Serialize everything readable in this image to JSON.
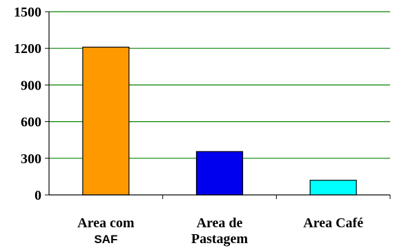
{
  "chart_data": {
    "type": "bar",
    "categories": [
      {
        "lines": [
          "Area com",
          "SAF"
        ]
      },
      {
        "lines": [
          "Area de",
          "Pastagem"
        ]
      },
      {
        "lines": [
          "Area Café"
        ]
      }
    ],
    "values": [
      1210,
      355,
      120
    ],
    "colors": [
      "#ff9900",
      "#0000ee",
      "#00ffff"
    ],
    "gridline_color": "#008000",
    "yticks": [
      0,
      300,
      600,
      900,
      1200,
      1500
    ],
    "ylim": [
      0,
      1500
    ],
    "grid": true,
    "title": "",
    "xlabel": "",
    "ylabel": ""
  }
}
